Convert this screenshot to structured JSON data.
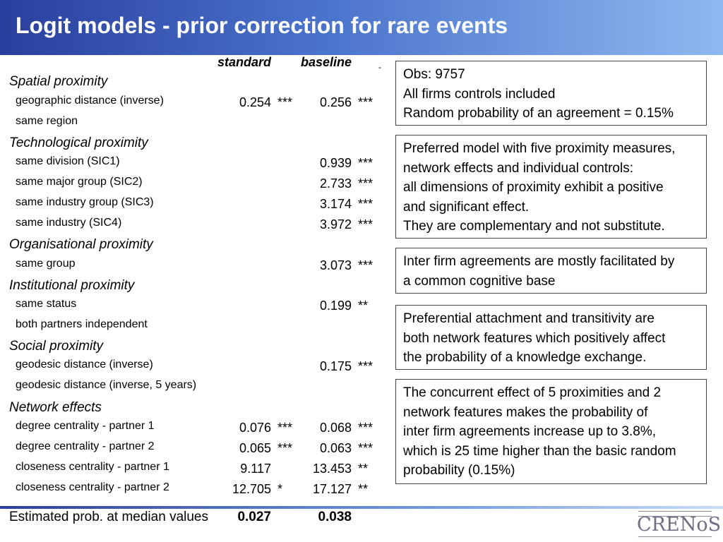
{
  "title": "Logit models - prior correction for rare events",
  "columns": {
    "standard": "standard",
    "baseline": "baseline"
  },
  "corner_mark": "-",
  "sections": [
    {
      "label": "Spatial proximity"
    },
    {
      "label": "Technological proximity"
    },
    {
      "label": "Organisational proximity"
    },
    {
      "label": "Institutional proximity"
    },
    {
      "label": "Social proximity"
    },
    {
      "label": "Network effects"
    }
  ],
  "rows": [
    {
      "label": "geographic distance (inverse)",
      "standard": "0.254",
      "standard_sig": "***",
      "baseline": "0.256",
      "baseline_sig": "***"
    },
    {
      "label": "same region",
      "standard": "",
      "standard_sig": "",
      "baseline": "",
      "baseline_sig": ""
    },
    {
      "label": "same division  (SIC1)",
      "standard": "",
      "standard_sig": "",
      "baseline": "0.939",
      "baseline_sig": "***"
    },
    {
      "label": "same major group  (SIC2)",
      "standard": "",
      "standard_sig": "",
      "baseline": "2.733",
      "baseline_sig": "***"
    },
    {
      "label": "same industry group (SIC3)",
      "standard": "",
      "standard_sig": "",
      "baseline": "3.174",
      "baseline_sig": "***"
    },
    {
      "label": "same industry (SIC4)",
      "standard": "",
      "standard_sig": "",
      "baseline": "3.972",
      "baseline_sig": "***"
    },
    {
      "label": "same group",
      "standard": "",
      "standard_sig": "",
      "baseline": "3.073",
      "baseline_sig": "***"
    },
    {
      "label": "same status",
      "standard": "",
      "standard_sig": "",
      "baseline": "0.199",
      "baseline_sig": "**"
    },
    {
      "label": "both partners independent",
      "standard": "",
      "standard_sig": "",
      "baseline": "",
      "baseline_sig": ""
    },
    {
      "label": "geodesic distance (inverse)",
      "standard": "",
      "standard_sig": "",
      "baseline": "0.175",
      "baseline_sig": "***"
    },
    {
      "label": "geodesic distance (inverse, 5 years)",
      "standard": "",
      "standard_sig": "",
      "baseline": "",
      "baseline_sig": ""
    },
    {
      "label": "degree centrality - partner 1",
      "standard": "0.076",
      "standard_sig": "***",
      "baseline": "0.068",
      "baseline_sig": "***"
    },
    {
      "label": "degree centrality - partner 2",
      "standard": "0.065",
      "standard_sig": "***",
      "baseline": "0.063",
      "baseline_sig": "***"
    },
    {
      "label": "closeness centrality - partner 1",
      "standard": "9.117",
      "standard_sig": "",
      "baseline": "13.453",
      "baseline_sig": "**"
    },
    {
      "label": "closeness centrality - partner 2",
      "standard": "12.705",
      "standard_sig": "*",
      "baseline": "17.127",
      "baseline_sig": "**"
    }
  ],
  "estimated": {
    "label": "Estimated prob. at median values",
    "standard": "0.027",
    "baseline": "0.038"
  },
  "boxes": [
    {
      "lines": [
        "Obs: 9757",
        "All firms controls included",
        "Random probability of an agreement = 0.15%"
      ]
    },
    {
      "lines": [
        "Preferred model with five proximity measures,",
        "network effects and individual controls:",
        "all dimensions of proximity exhibit a positive",
        "and significant effect.",
        "They are complementary and not substitute."
      ]
    },
    {
      "lines": [
        "Inter firm agreements are mostly facilitated by",
        "a common cognitive base"
      ]
    },
    {
      "lines": [
        "Preferential attachment and transitivity are",
        "both network features which positively affect",
        "the probability of a knowledge exchange."
      ]
    },
    {
      "lines": [
        "The concurrent effect of 5 proximities and 2",
        "network features makes the probability of",
        "inter firm agreements increase up to 3.8%,",
        "which is 25 time higher than the basic random",
        "probability (0.15%)"
      ]
    }
  ],
  "logo": {
    "text": "CRENoS"
  }
}
